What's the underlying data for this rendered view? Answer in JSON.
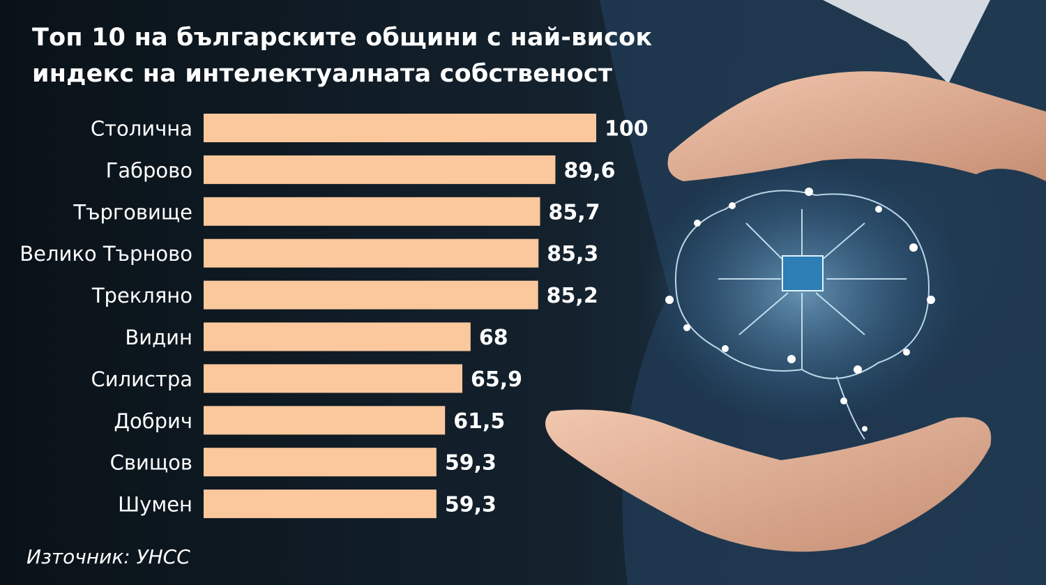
{
  "chart_data": {
    "type": "bar",
    "orientation": "horizontal",
    "title": "Топ 10 на българските общини с най-висок индекс на интелектуалната собственост",
    "categories": [
      "Столична",
      "Габрово",
      "Търговище",
      "Велико Търново",
      "Трекляно",
      "Видин",
      "Силистра",
      "Добрич",
      "Свищов",
      "Шумен"
    ],
    "values": [
      100,
      89.6,
      85.7,
      85.3,
      85.2,
      68,
      65.9,
      61.5,
      59.3,
      59.3
    ],
    "value_labels": [
      "100",
      "89,6",
      "85,7",
      "85,3",
      "85,2",
      "68",
      "65,9",
      "61,5",
      "59,3",
      "59,3"
    ],
    "xlim": [
      0,
      100
    ],
    "grid": false,
    "bar_color": "#fac89c"
  },
  "source": "Източник: УНСС"
}
